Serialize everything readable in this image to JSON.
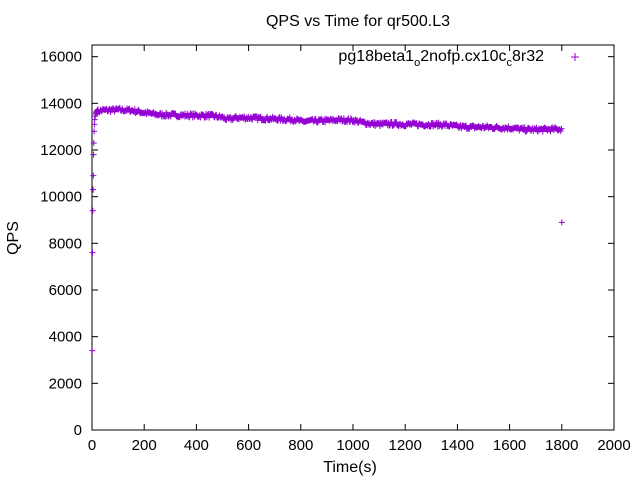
{
  "chart_data": {
    "type": "scatter",
    "title": "QPS vs Time for qr500.L3",
    "xlabel": "Time(s)",
    "ylabel": "QPS",
    "xlim": [
      0,
      2000
    ],
    "ylim": [
      0,
      16500
    ],
    "x_ticks": [
      0,
      200,
      400,
      600,
      800,
      1000,
      1200,
      1400,
      1600,
      1800,
      2000
    ],
    "y_ticks": [
      0,
      2000,
      4000,
      6000,
      8000,
      10000,
      12000,
      14000,
      16000
    ],
    "grid": false,
    "legend_position": "top-right",
    "marker": "+",
    "series": [
      {
        "name_parts": [
          "pg18beta1",
          "o",
          "2nofp.cx10c",
          "c",
          "8r32"
        ],
        "color": "#9400d3",
        "startup_points": [
          [
            1,
            3400
          ],
          [
            2,
            7600
          ],
          [
            3,
            9400
          ],
          [
            4,
            10300
          ],
          [
            5,
            10900
          ],
          [
            6,
            11800
          ],
          [
            7,
            12300
          ],
          [
            8,
            12800
          ],
          [
            9,
            13100
          ],
          [
            10,
            13300
          ],
          [
            12,
            13450
          ],
          [
            14,
            13550
          ],
          [
            16,
            13600
          ],
          [
            18,
            13650
          ],
          [
            20,
            13700
          ]
        ],
        "trend": [
          [
            20,
            13650
          ],
          [
            40,
            13700
          ],
          [
            100,
            13720
          ],
          [
            150,
            13700
          ],
          [
            200,
            13600
          ],
          [
            250,
            13520
          ],
          [
            300,
            13500
          ],
          [
            400,
            13480
          ],
          [
            450,
            13470
          ],
          [
            500,
            13400
          ],
          [
            520,
            13300
          ],
          [
            550,
            13380
          ],
          [
            600,
            13380
          ],
          [
            700,
            13330
          ],
          [
            780,
            13300
          ],
          [
            800,
            13220
          ],
          [
            850,
            13240
          ],
          [
            900,
            13260
          ],
          [
            950,
            13290
          ],
          [
            1000,
            13270
          ],
          [
            1050,
            13150
          ],
          [
            1100,
            13100
          ],
          [
            1150,
            13120
          ],
          [
            1200,
            13100
          ],
          [
            1300,
            13090
          ],
          [
            1350,
            13080
          ],
          [
            1400,
            13000
          ],
          [
            1450,
            12980
          ],
          [
            1500,
            12980
          ],
          [
            1550,
            12960
          ],
          [
            1600,
            12950
          ],
          [
            1650,
            12880
          ],
          [
            1700,
            12870
          ],
          [
            1750,
            12880
          ],
          [
            1800,
            12900
          ]
        ],
        "outliers": [
          [
            1800,
            8900
          ]
        ]
      }
    ]
  }
}
